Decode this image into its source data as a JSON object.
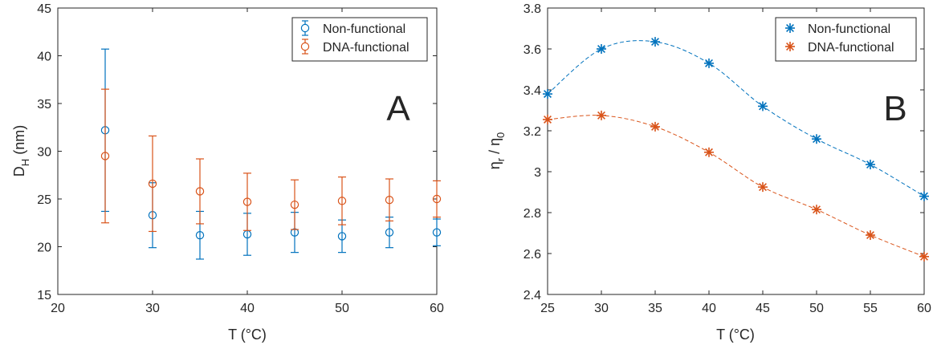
{
  "chart_data": [
    {
      "type": "scatter",
      "panel_label": "A",
      "xlabel": "T (°C)",
      "ylabel": "D",
      "ylabel_sub": "H",
      "ylabel_suffix": " (nm)",
      "xlim": [
        20,
        60
      ],
      "ylim": [
        15,
        45
      ],
      "xticks": [
        20,
        30,
        40,
        50,
        60
      ],
      "yticks": [
        15,
        20,
        25,
        30,
        35,
        40,
        45
      ],
      "error_bars": true,
      "legend_position": "top-right",
      "series": [
        {
          "name": "Non-functional",
          "color": "#0072BD",
          "marker": "circle",
          "x": [
            25,
            30,
            35,
            40,
            45,
            50,
            55,
            60
          ],
          "y": [
            32.2,
            23.3,
            21.2,
            21.3,
            21.5,
            21.1,
            21.5,
            21.5
          ],
          "err": [
            8.5,
            3.4,
            2.5,
            2.2,
            2.1,
            1.7,
            1.6,
            1.4
          ]
        },
        {
          "name": "DNA-functional",
          "color": "#D95319",
          "marker": "circle",
          "x": [
            25,
            30,
            35,
            40,
            45,
            50,
            55,
            60
          ],
          "y": [
            29.5,
            26.6,
            25.8,
            24.7,
            24.4,
            24.8,
            24.9,
            25.0
          ],
          "err": [
            7.0,
            5.0,
            3.4,
            3.0,
            2.6,
            2.5,
            2.2,
            1.9
          ]
        }
      ]
    },
    {
      "type": "line",
      "panel_label": "B",
      "xlabel": "T (°C)",
      "ylabel": "η",
      "ylabel_sub": "r",
      "ylabel_mid": " / η",
      "ylabel_sub2": "0",
      "xlim": [
        25,
        60
      ],
      "ylim": [
        2.4,
        3.8
      ],
      "xticks": [
        25,
        30,
        35,
        40,
        45,
        50,
        55,
        60
      ],
      "yticks": [
        2.4,
        2.6,
        2.8,
        3.0,
        3.2,
        3.4,
        3.6,
        3.8
      ],
      "ytick_labels": [
        "2.4",
        "2.6",
        "2.8",
        "3",
        "3.2",
        "3.4",
        "3.6",
        "3.8"
      ],
      "line_style": "dashed-smooth",
      "legend_position": "top-right",
      "series": [
        {
          "name": "Non-functional",
          "color": "#0072BD",
          "marker": "asterisk",
          "x": [
            25,
            30,
            35,
            40,
            45,
            50,
            55,
            60
          ],
          "y": [
            3.38,
            3.6,
            3.635,
            3.53,
            3.32,
            3.16,
            3.035,
            2.88
          ]
        },
        {
          "name": "DNA-functional",
          "color": "#D95319",
          "marker": "asterisk",
          "x": [
            25,
            30,
            35,
            40,
            45,
            50,
            55,
            60
          ],
          "y": [
            3.255,
            3.275,
            3.22,
            3.095,
            2.925,
            2.815,
            2.69,
            2.585
          ]
        }
      ]
    }
  ]
}
